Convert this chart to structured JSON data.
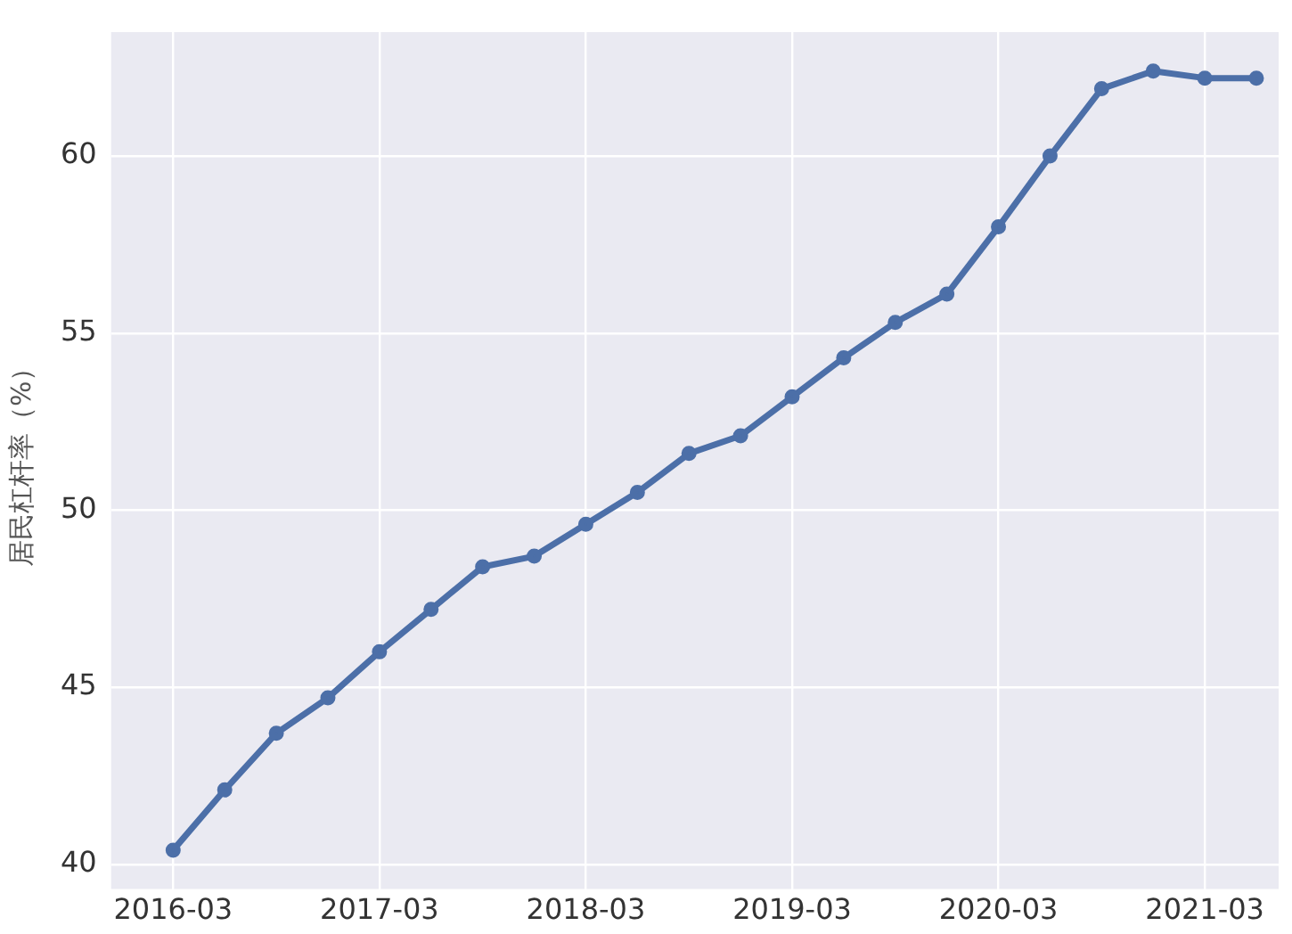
{
  "chart_data": {
    "type": "line",
    "ylabel": "居民杠杆率（%）",
    "x": [
      "2016-03",
      "2016-06",
      "2016-09",
      "2016-12",
      "2017-03",
      "2017-06",
      "2017-09",
      "2017-12",
      "2018-03",
      "2018-06",
      "2018-09",
      "2018-12",
      "2019-03",
      "2019-06",
      "2019-09",
      "2019-12",
      "2020-03",
      "2020-06",
      "2020-09",
      "2020-12",
      "2021-03",
      "2021-06"
    ],
    "series": [
      {
        "color": "#4c6fa8",
        "values": [
          40.4,
          42.1,
          43.7,
          44.7,
          46.0,
          47.2,
          48.4,
          48.7,
          49.6,
          50.5,
          51.6,
          52.1,
          53.2,
          54.3,
          55.3,
          56.1,
          58.0,
          60.0,
          61.9,
          62.4,
          62.2,
          62.2
        ]
      }
    ],
    "xlim": [
      "2015-11-13",
      "2021-07-10"
    ],
    "xticks": [
      "2016-03",
      "2017-03",
      "2018-03",
      "2019-03",
      "2020-03",
      "2021-03"
    ],
    "ylim": [
      39.3,
      63.5
    ],
    "yticks": [
      40,
      45,
      50,
      55,
      60
    ],
    "grid": true,
    "legend": false,
    "marker": "circle",
    "line_style": "solid"
  }
}
